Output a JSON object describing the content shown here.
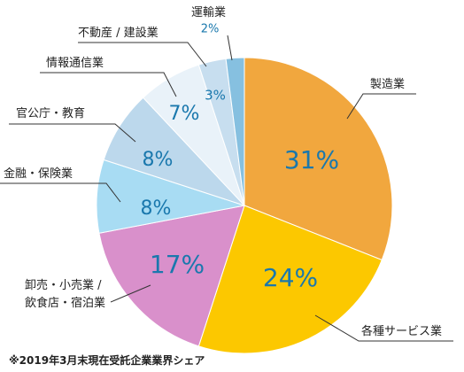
{
  "chart_data": {
    "type": "pie",
    "categories": [
      "製造業",
      "各種サービス業",
      "卸売・小売業 /\n飲食店・宿泊業",
      "金融・保険業",
      "官公庁・教育",
      "情報通信業",
      "不動産 / 建設業",
      "運輸業"
    ],
    "values": [
      31,
      24,
      17,
      8,
      8,
      7,
      3,
      2
    ],
    "value_labels": [
      "31%",
      "24%",
      "17%",
      "8%",
      "8%",
      "7%",
      "3%",
      "2%"
    ],
    "colors": [
      "#f1a73e",
      "#fcc800",
      "#d990cb",
      "#a8dcf3",
      "#bcd8ec",
      "#e9f2f9",
      "#c7deef",
      "#86c0e0"
    ],
    "value_label_color": "#1a78ad",
    "note": "※2019年3月末現在受託企業業界シェア"
  }
}
